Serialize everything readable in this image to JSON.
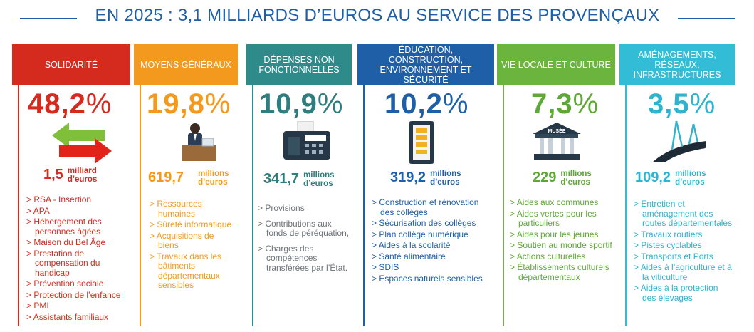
{
  "title": "EN 2025 : 3,1 MILLIARDS D’EUROS AU SERVICE DES PROVENÇAUX",
  "colors": {
    "solidarite": "#d52b1e",
    "moyens": "#f39a1e",
    "depenses": "#2f8a8a",
    "education": "#1f5fa8",
    "vie_locale": "#6bb43e",
    "amenagements": "#33bcd6"
  },
  "columns": [
    {
      "header": "SOLIDARITÉ",
      "percent": "48,2",
      "amount": "1,5",
      "unit_line1": "milliard",
      "unit_line2": "d’euros",
      "icon": "exchange-arrows-icon",
      "items": [
        "RSA - Insertion",
        "APA",
        "Hébergement des personnes âgées",
        "Maison du Bel Âge",
        "Prestation de compensation du handicap",
        "Prévention sociale",
        "Protection de l’enfance",
        "PMI",
        "Assistants familiaux"
      ]
    },
    {
      "header": "MOYENS GÉNÉRAUX",
      "percent": "19,8",
      "amount": "619,7",
      "unit_line1": "millions",
      "unit_line2": "d’euros",
      "icon": "office-worker-icon",
      "items": [
        "Ressources humaines",
        "Sûreté informatique",
        "Acquisitions de biens",
        "Travaux dans les bâtiments départementaux sensibles"
      ]
    },
    {
      "header": "DÉPENSES NON FONCTIONNELLES",
      "percent": "10,9",
      "amount": "341,7",
      "unit_line1": "millions",
      "unit_line2": "d’euros",
      "icon": "calculator-icon",
      "items": [
        "Provisions",
        "Contributions aux fonds de péréquation,",
        "Charges des compétences transférées par l’État."
      ]
    },
    {
      "header": "ÉDUCATION, CONSTRUCTION, ENVIRONNEMENT ET SÉCURITÉ",
      "percent": "10,2",
      "amount": "319,2",
      "unit_line1": "millions",
      "unit_line2": "d’euros",
      "icon": "checklist-icon",
      "items": [
        "Construction et rénovation des collèges",
        "Sécurisation des collèges",
        "Plan collège numérique",
        "Aides à la scolarité",
        "Santé alimentaire",
        "SDIS",
        "Espaces naturels sensibles"
      ]
    },
    {
      "header": "VIE LOCALE ET CULTURE",
      "percent": "7,3",
      "amount": "229",
      "unit_line1": "millions",
      "unit_line2": "d’euros",
      "icon": "museum-icon",
      "museum_label": "MUSÉE",
      "items": [
        "Aides aux communes",
        "Aides vertes pour les particuliers",
        "Aides pour les jeunes",
        "Soutien au monde sportif",
        "Actions culturelles",
        "Établissements culturels départementaux"
      ]
    },
    {
      "header": "AMÉNAGEMENTS, RÉSEAUX, INFRASTRUCTURES",
      "percent": "3,5",
      "amount": "109,2",
      "unit_line1": "millions",
      "unit_line2": "d’euros",
      "icon": "road-bridge-icon",
      "items": [
        "Entretien et aménagement des routes départementales",
        "Travaux routiers",
        "Pistes cyclables",
        "Transports et Ports",
        "Aides à l’agriculture et à la viticulture",
        "Aides à la protection des élevages"
      ]
    }
  ]
}
